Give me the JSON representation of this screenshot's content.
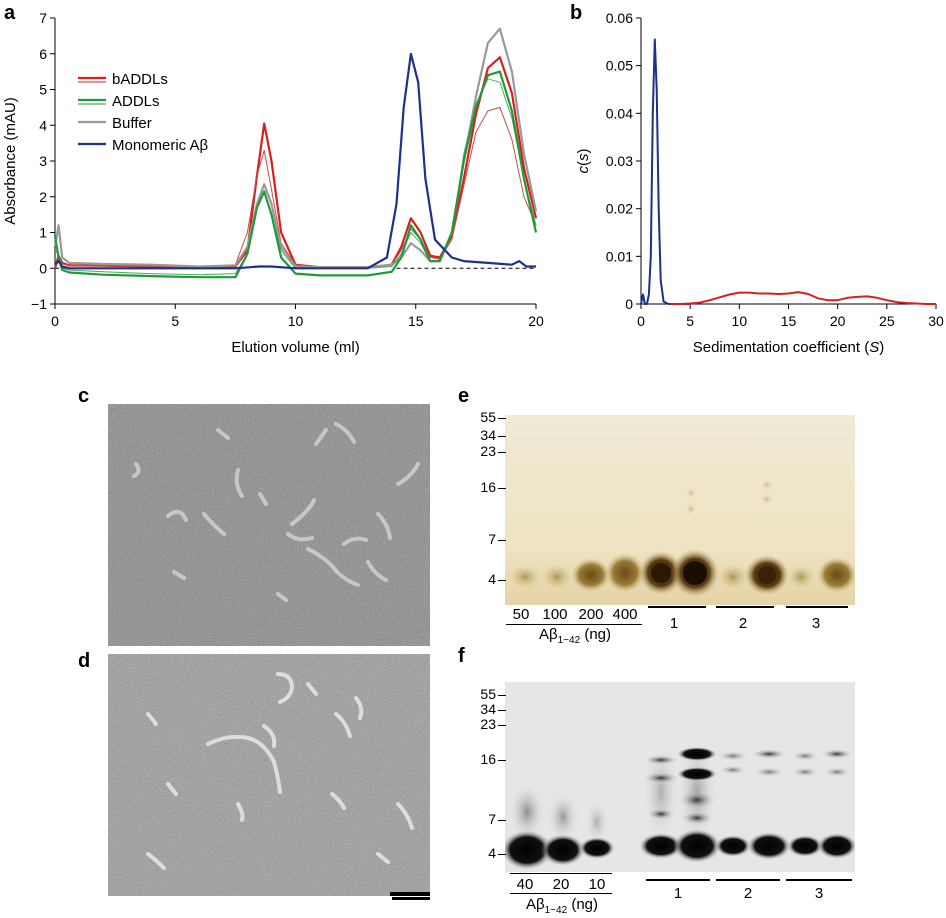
{
  "panels": {
    "a": "a",
    "b": "b",
    "c": "c",
    "d": "d",
    "e": "e",
    "f": "f"
  },
  "chart_data": [
    {
      "type": "line",
      "panel": "a",
      "xlabel": "Elution volume (ml)",
      "ylabel": "Absorbance (mAU)",
      "xlim": [
        0,
        20
      ],
      "ylim": [
        -1,
        7
      ],
      "xticks": [
        "0",
        "5",
        "10",
        "15",
        "20"
      ],
      "yticks": [
        "−1",
        "0",
        "1",
        "2",
        "3",
        "4",
        "5",
        "6",
        "7"
      ],
      "legend_position": "top-left",
      "legend": [
        {
          "name": "bADDLs",
          "color": "#d62020"
        },
        {
          "name": "ADDLs",
          "color": "#1f9a3a"
        },
        {
          "name": "Buffer",
          "color": "#999999"
        },
        {
          "name": "Monomeric Aβ",
          "color": "#1f2f8c"
        }
      ],
      "series": [
        {
          "name": "bADDLs",
          "color": "#d62020",
          "width": 2.2,
          "x": [
            0,
            0.15,
            0.3,
            0.6,
            2,
            4,
            6,
            7.5,
            8,
            8.4,
            8.7,
            9.0,
            9.4,
            10,
            11,
            12,
            13,
            14,
            14.4,
            14.8,
            15.2,
            15.6,
            16,
            16.5,
            17,
            17.5,
            18,
            18.5,
            19,
            19.5,
            20
          ],
          "y": [
            0.0,
            0.35,
            0.15,
            0.08,
            0.07,
            0.05,
            0.04,
            0.05,
            0.5,
            2.6,
            4.05,
            3.0,
            1.0,
            0.1,
            0.03,
            0.03,
            0.03,
            0.1,
            0.6,
            1.4,
            1.0,
            0.35,
            0.3,
            0.9,
            2.5,
            4.3,
            5.6,
            5.9,
            4.9,
            2.8,
            1.4
          ]
        },
        {
          "name": "bADDLs (thin)",
          "color": "#c0504d",
          "width": 1,
          "x": [
            0,
            0.15,
            0.3,
            0.6,
            2,
            4,
            6,
            7.5,
            8,
            8.4,
            8.7,
            9.0,
            9.4,
            10,
            11,
            12,
            13,
            14,
            14.4,
            14.8,
            15.2,
            15.6,
            16,
            16.5,
            17,
            17.5,
            18,
            18.5,
            19,
            19.5,
            20
          ],
          "y": [
            0.0,
            0.25,
            0.12,
            0.08,
            0.07,
            0.05,
            0.04,
            0.1,
            1.0,
            2.6,
            3.3,
            2.2,
            0.7,
            0.1,
            0.03,
            0.03,
            0.03,
            0.1,
            0.5,
            1.1,
            0.8,
            0.3,
            0.25,
            0.8,
            2.3,
            3.8,
            4.4,
            4.5,
            3.6,
            2.0,
            1.2
          ]
        },
        {
          "name": "Buffer",
          "color": "#999999",
          "width": 2.2,
          "x": [
            0,
            0.15,
            0.3,
            0.6,
            2,
            4,
            6,
            7.5,
            8,
            8.4,
            8.7,
            9.0,
            9.4,
            10,
            11,
            12,
            13,
            14,
            14.4,
            14.8,
            15.2,
            15.6,
            16,
            16.5,
            17,
            17.5,
            18,
            18.5,
            19,
            19.5,
            20
          ],
          "y": [
            0.6,
            1.2,
            0.3,
            0.15,
            0.12,
            0.1,
            0.05,
            0.08,
            0.6,
            1.8,
            2.35,
            1.8,
            0.6,
            0.05,
            0.03,
            0.03,
            0.03,
            0.1,
            0.3,
            0.7,
            0.5,
            0.2,
            0.2,
            1.0,
            3.0,
            4.8,
            6.3,
            6.7,
            5.5,
            3.2,
            1.6
          ]
        },
        {
          "name": "ADDLs (thin)",
          "color": "#4caa5a",
          "width": 1,
          "x": [
            0,
            0.15,
            0.3,
            0.6,
            2,
            4,
            6,
            7.5,
            8,
            8.4,
            8.7,
            9.0,
            9.4,
            10,
            11,
            12,
            13,
            14,
            14.4,
            14.8,
            15.2,
            15.6,
            16,
            16.5,
            17,
            17.5,
            18,
            18.5,
            19,
            19.5,
            20
          ],
          "y": [
            0.5,
            0.4,
            0.0,
            -0.05,
            -0.1,
            -0.15,
            -0.18,
            -0.15,
            0.4,
            1.7,
            2.1,
            1.5,
            0.5,
            0.0,
            0.0,
            0.0,
            0.0,
            0.05,
            0.4,
            1.0,
            0.7,
            0.2,
            0.2,
            1.0,
            3.2,
            4.6,
            5.3,
            5.2,
            4.2,
            2.5,
            1.2
          ]
        },
        {
          "name": "ADDLs",
          "color": "#1f9a3a",
          "width": 2.2,
          "x": [
            0,
            0.15,
            0.3,
            0.6,
            2,
            4,
            6,
            7.5,
            8,
            8.4,
            8.7,
            9.0,
            9.4,
            10,
            11,
            12,
            13,
            14,
            14.4,
            14.8,
            15.2,
            15.6,
            16,
            16.5,
            17,
            17.5,
            18,
            18.5,
            19,
            19.5,
            20
          ],
          "y": [
            0.9,
            0.3,
            -0.05,
            -0.12,
            -0.18,
            -0.22,
            -0.25,
            -0.25,
            0.4,
            1.7,
            2.15,
            1.5,
            0.3,
            -0.15,
            -0.2,
            -0.2,
            -0.2,
            -0.1,
            0.3,
            1.2,
            0.8,
            0.2,
            0.2,
            1.0,
            3.0,
            4.5,
            5.4,
            5.5,
            4.4,
            2.5,
            1.0
          ]
        },
        {
          "name": "Monomeric Aβ",
          "color": "#1f2f8c",
          "width": 2.2,
          "x": [
            0,
            0.15,
            0.3,
            0.6,
            2,
            4,
            6,
            7.5,
            8.5,
            9,
            10,
            12,
            13,
            13.8,
            14.2,
            14.5,
            14.8,
            15.1,
            15.4,
            15.8,
            16.5,
            17,
            18,
            19,
            19.3,
            19.6,
            20
          ],
          "y": [
            0.1,
            0.2,
            0.05,
            0.0,
            0.0,
            0.0,
            0.0,
            0.0,
            0.05,
            0.05,
            0.0,
            0.0,
            0.0,
            0.3,
            1.8,
            4.5,
            6.0,
            5.2,
            2.5,
            0.8,
            0.3,
            0.2,
            0.15,
            0.1,
            0.2,
            0.05,
            0.05
          ]
        }
      ],
      "baseline": {
        "y": 0,
        "style": "dashed"
      }
    },
    {
      "type": "line",
      "panel": "b",
      "xlabel": "Sedimentation coefficient (S)",
      "ylabel": "c(s)",
      "xlim": [
        0,
        30
      ],
      "ylim": [
        0,
        0.06
      ],
      "xticks": [
        "0",
        "5",
        "10",
        "15",
        "20",
        "25",
        "30"
      ],
      "yticks": [
        "0",
        "0.01",
        "0.02",
        "0.03",
        "0.04",
        "0.05",
        "0.06"
      ],
      "series": [
        {
          "name": "blue",
          "color": "#1f2f8c",
          "x": [
            0,
            0.2,
            0.4,
            0.6,
            0.8,
            1.0,
            1.2,
            1.4,
            1.6,
            1.8,
            2.0,
            2.3,
            2.8,
            4,
            5
          ],
          "y": [
            0.0,
            0.002,
            0.0,
            0.0,
            0.002,
            0.01,
            0.04,
            0.0555,
            0.045,
            0.02,
            0.005,
            0.0005,
            0.0,
            0.0,
            0.0
          ]
        },
        {
          "name": "red",
          "color": "#d62020",
          "x": [
            3,
            4,
            5,
            6,
            7,
            8,
            9,
            10,
            11,
            12,
            13,
            14,
            15,
            16,
            17,
            18,
            19,
            20,
            21,
            22,
            23,
            24,
            25,
            26,
            27,
            28,
            29,
            30
          ],
          "y": [
            0,
            0,
            0.0001,
            0.0003,
            0.0008,
            0.0014,
            0.002,
            0.0024,
            0.0024,
            0.0022,
            0.0022,
            0.0021,
            0.0022,
            0.0025,
            0.0021,
            0.0012,
            0.0008,
            0.0008,
            0.0013,
            0.0015,
            0.0016,
            0.0013,
            0.0008,
            0.0004,
            0.0002,
            0.0001,
            0,
            0
          ]
        }
      ]
    }
  ],
  "gel_e": {
    "markers": [
      "55",
      "34",
      "23",
      "16",
      "7",
      "4"
    ],
    "lane_labels": [
      "50",
      "100",
      "200",
      "400"
    ],
    "ab_label": "Aβ",
    "ab_sub": "1−42",
    "ab_unit": " (ng)",
    "groups": [
      "1",
      "2",
      "3"
    ]
  },
  "gel_f": {
    "markers": [
      "55",
      "34",
      "23",
      "16",
      "7",
      "4"
    ],
    "lane_labels": [
      "40",
      "20",
      "10"
    ],
    "ab_label": "Aβ",
    "ab_sub": "1−42",
    "ab_unit": " (ng)",
    "groups": [
      "1",
      "2",
      "3"
    ]
  }
}
